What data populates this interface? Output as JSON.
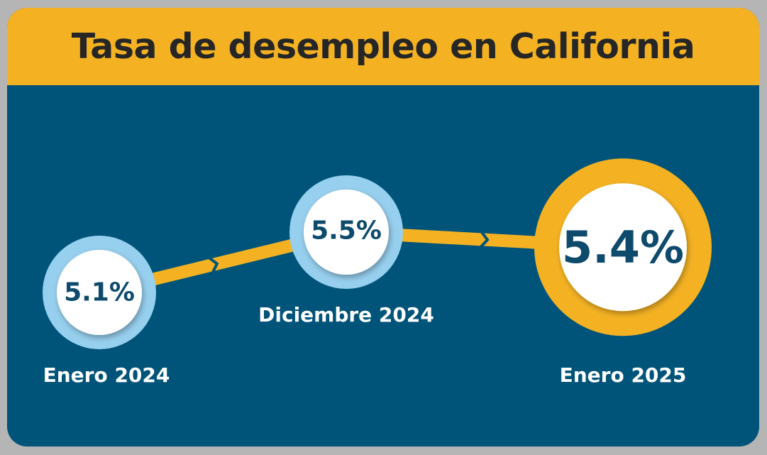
{
  "chart_data": {
    "type": "line",
    "title": "Tasa de desempleo en California",
    "categories": [
      "Enero 2024",
      "Diciembre 2024",
      "Enero 2025"
    ],
    "values": [
      5.1,
      5.5,
      5.4
    ],
    "value_labels": [
      "5.1%",
      "5.5%",
      "5.4%"
    ],
    "unit": "%",
    "highlight_index": 2
  },
  "colors": {
    "header": "#f4b223",
    "background": "#005479",
    "ring": "#97cfee",
    "highlight_ring": "#f4b223",
    "line": "#f4b223",
    "value_text": "#0d4a6b"
  }
}
